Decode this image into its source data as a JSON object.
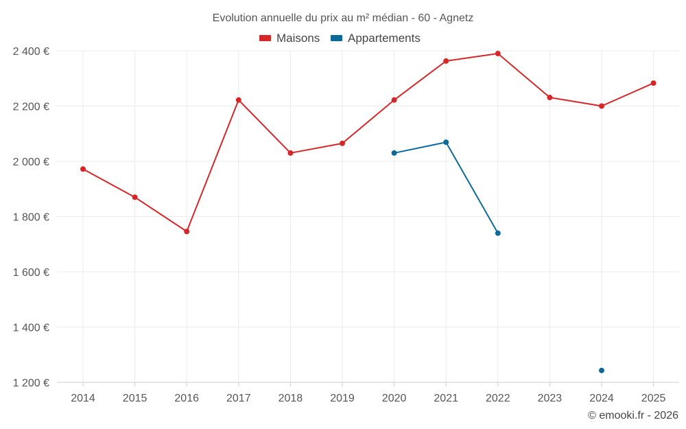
{
  "chart_data": {
    "type": "line",
    "title": "Evolution annuelle du prix au m² médian - 60 - Agnetz",
    "xlabel": "",
    "ylabel": "",
    "x": [
      "2014",
      "2015",
      "2016",
      "2017",
      "2018",
      "2019",
      "2020",
      "2021",
      "2022",
      "2023",
      "2024",
      "2025"
    ],
    "ylim": [
      1200,
      2400
    ],
    "yticks": [
      1200,
      1400,
      1600,
      1800,
      2000,
      2200,
      2400
    ],
    "ytick_labels": [
      "1 200 €",
      "1 400 €",
      "1 600 €",
      "1 800 €",
      "2 000 €",
      "2 200 €",
      "2 400 €"
    ],
    "series": [
      {
        "name": "Maisons",
        "color": "#d62728",
        "values": [
          1972,
          1870,
          1746,
          2222,
          2030,
          2065,
          2222,
          2363,
          2390,
          2231,
          2200,
          2283
        ]
      },
      {
        "name": "Appartements",
        "color": "#0b6a9a",
        "values": [
          null,
          null,
          null,
          null,
          null,
          null,
          2030,
          2069,
          1740,
          null,
          1243,
          null
        ]
      }
    ],
    "grid": true,
    "legend_position": "top-center"
  },
  "credit": "© emooki.fr - 2026"
}
